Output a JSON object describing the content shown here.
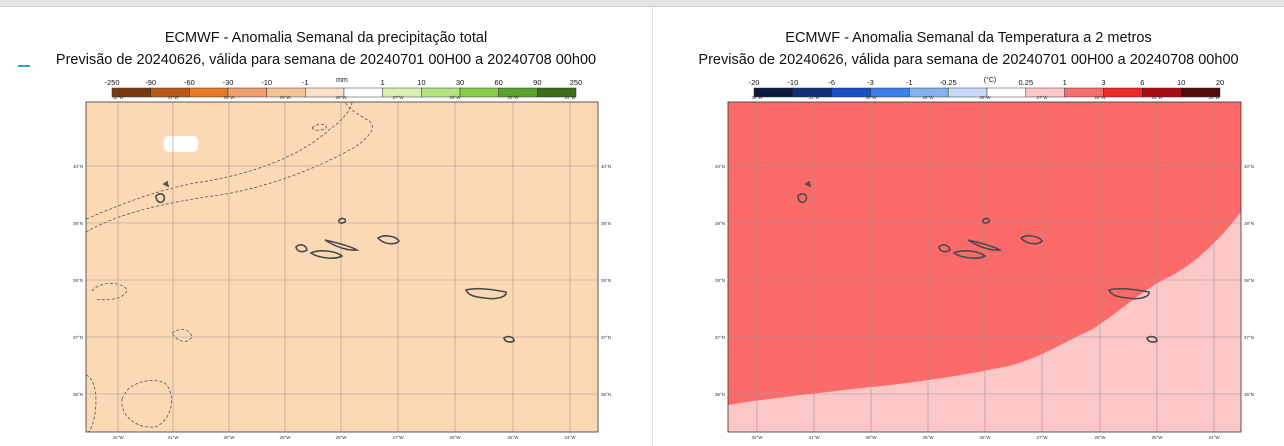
{
  "left": {
    "title": "ECMWF - Anomalia Semanal da precipitação total",
    "subtitle": "Previsão de 20240626, válida para semana de 20240701 00H00 a 20240708 00h00",
    "colorbar": {
      "unit": "mm",
      "ticks": [
        "-250",
        "-90",
        "-60",
        "-30",
        "-10",
        "-1",
        "1",
        "10",
        "30",
        "60",
        "90",
        "250"
      ],
      "colors": [
        "#7a3a10",
        "#b85a15",
        "#e67a26",
        "#f1a06c",
        "#f5c197",
        "#fde0c9",
        "#ffffff",
        "#d9f0b0",
        "#b5e37d",
        "#8acc4a",
        "#5aa22b",
        "#3b6d1b"
      ]
    },
    "fill": "#fcd9b5",
    "lon_labels": [
      "32°W",
      "31°W",
      "30°W",
      "29°W",
      "28°W",
      "27°W",
      "26°W",
      "25°W",
      "24°W"
    ],
    "lat_labels": [
      "40°N",
      "39°N",
      "38°N",
      "37°N",
      "36°N"
    ]
  },
  "right": {
    "title": "ECMWF - Anomalia Semanal da Temperatura a 2 metros",
    "subtitle": "Previsão de 20240626, válida para semana de 20240701 00H00 a 20240708 00h00",
    "colorbar": {
      "unit": "(°C)",
      "ticks": [
        "-20",
        "-10",
        "-6",
        "-3",
        "-1",
        "-0.25",
        "0.25",
        "1",
        "3",
        "6",
        "10",
        "20"
      ],
      "colors": [
        "#0b1a3c",
        "#12307a",
        "#1a50c6",
        "#3a7ee8",
        "#86b0ee",
        "#c9dbf6",
        "#ffffff",
        "#fcc9c9",
        "#f47070",
        "#ee2a2a",
        "#a80d14",
        "#520a0a"
      ]
    },
    "fill_main": "#fd6a6a",
    "fill_low": "#fec7c7",
    "lon_labels": [
      "32°W",
      "31°W",
      "30°W",
      "29°W",
      "28°W",
      "27°W",
      "26°W",
      "25°W",
      "24°W"
    ],
    "lat_labels": [
      "40°N",
      "39°N",
      "38°N",
      "37°N",
      "36°N"
    ]
  }
}
